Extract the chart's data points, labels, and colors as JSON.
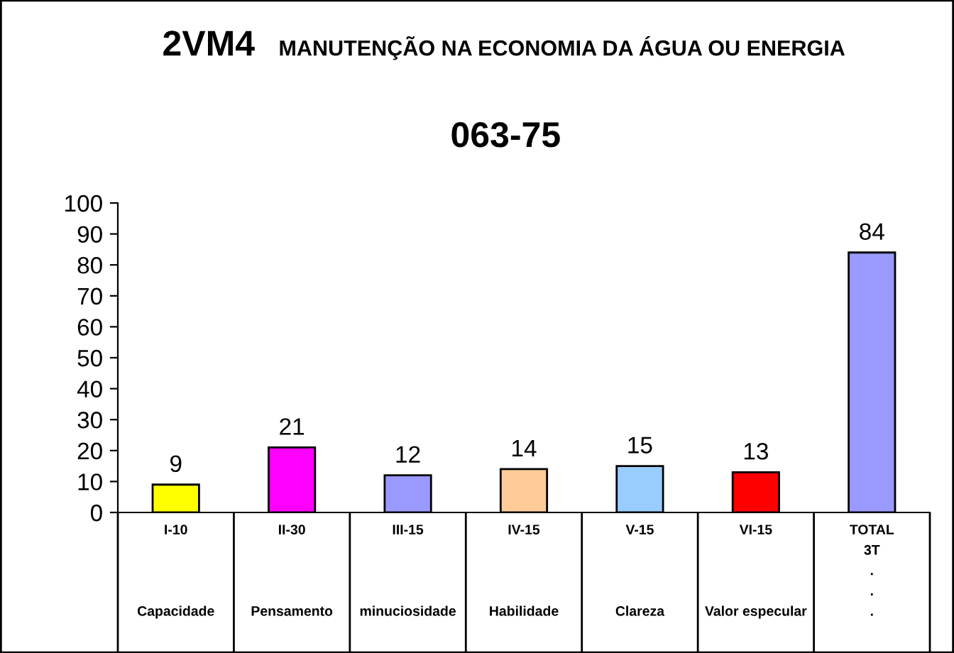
{
  "chart_data": {
    "type": "bar",
    "title": "2VM4 MANUTENÇÃO NA ECONOMIA DA ÁGUA OU ENERGIA",
    "subtitle": "063-75",
    "categories": [
      "I-10\n\n\n\nCapacidade",
      "II-30\n\n\n\nPensamento",
      "III-15\n\n\n\nminuciosidade",
      "IV-15\n\n\n\nHabilidade",
      "V-15\n\n\n\nClareza",
      "VI-15\n\n\n\nValor especular",
      "TOTAL\n3T\n.\n.\n."
    ],
    "values": [
      9,
      21,
      12,
      14,
      15,
      13,
      84
    ],
    "colors": [
      "#ffff00",
      "#ff00ff",
      "#9999ff",
      "#ffcc99",
      "#99ccff",
      "#ff0000",
      "#9999ff"
    ],
    "ylim": [
      0,
      100
    ],
    "yticks": [
      0,
      10,
      20,
      30,
      40,
      50,
      60,
      70,
      80,
      90,
      100
    ],
    "data_labels": true,
    "grid": false,
    "legend": false
  }
}
